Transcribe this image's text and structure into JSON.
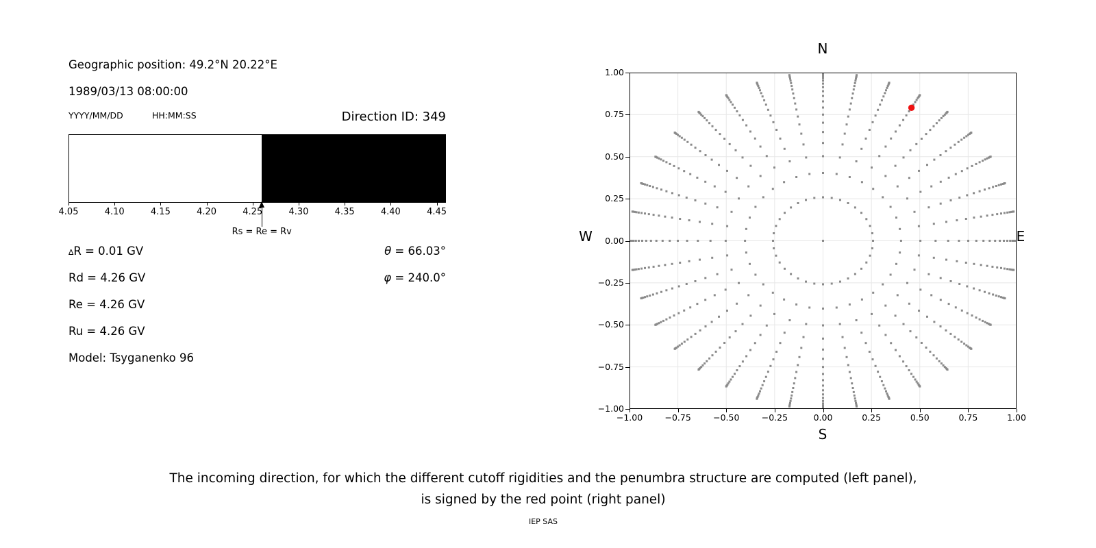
{
  "header": {
    "geographic_position": "Geographic position: 49.2°N 20.22°E",
    "datetime": "1989/03/13 08:00:00",
    "date_format_hint": "YYYY/MM/DD",
    "time_format_hint": "HH:MM:SS",
    "direction_id": "Direction ID: 349"
  },
  "values": {
    "delta_symbol": "∆",
    "delta_rest": "R = 0.01 GV",
    "rd": "Rd = 4.26 GV",
    "re": "Re = 4.26 GV",
    "ru": "Ru = 4.26 GV",
    "model": "Model: Tsyganenko 96",
    "theta_symbol": "θ",
    "theta_rest": " = 66.03°",
    "phi_symbol": "φ",
    "phi_rest": " = 240.0°"
  },
  "caption": {
    "line1": "The incoming direction, for which the different cutoff rigidities and the penumbra structure are computed (left panel),",
    "line2": "is signed by the red point (right panel)",
    "credit": "IEP SAS"
  },
  "chart_data": [
    {
      "panel": "left",
      "type": "bar",
      "description": "Penumbra structure band: allowed rigidities white, forbidden black",
      "x_range": [
        4.05,
        4.46
      ],
      "x_ticks": [
        4.05,
        4.1,
        4.15,
        4.2,
        4.25,
        4.3,
        4.35,
        4.4,
        4.45
      ],
      "allowed_region": [
        4.05,
        4.26
      ],
      "forbidden_region": [
        4.26,
        4.46
      ],
      "colors": {
        "allowed": "#ffffff",
        "forbidden": "#000000"
      },
      "annotation": {
        "x": 4.26,
        "label": "Rs = Re = Rv"
      },
      "rigidity_values": {
        "delta_R_GV": 0.01,
        "Rd_GV": 4.26,
        "Re_GV": 4.26,
        "Ru_GV": 4.26
      }
    },
    {
      "panel": "right",
      "type": "scatter",
      "description": "Grid of computed incoming directions projected as r = sin(zenith); red point marks the selected direction",
      "label_top": "N",
      "label_bottom": "S",
      "label_left": "W",
      "label_right": "E",
      "xlim": [
        -1,
        1
      ],
      "ylim": [
        -1,
        1
      ],
      "ticks": [
        -1.0,
        -0.75,
        -0.5,
        -0.25,
        0.0,
        0.25,
        0.5,
        0.75,
        1.0
      ],
      "grid": true,
      "dot_color": "#8a8a8a",
      "direction_grid": {
        "azimuth_count": 36,
        "azimuth_step_deg": 10,
        "zenith_cos_start": 0.966,
        "zenith_cos_end": 0.0,
        "zenith_steps": 20,
        "radius_rule": "r = sin(zenith)",
        "center_point": [
          0,
          0
        ]
      },
      "red_point": {
        "x": 0.457,
        "y": 0.791,
        "theta_deg": 66.03,
        "phi_deg": 240.0,
        "color": "#ee1111"
      }
    }
  ]
}
